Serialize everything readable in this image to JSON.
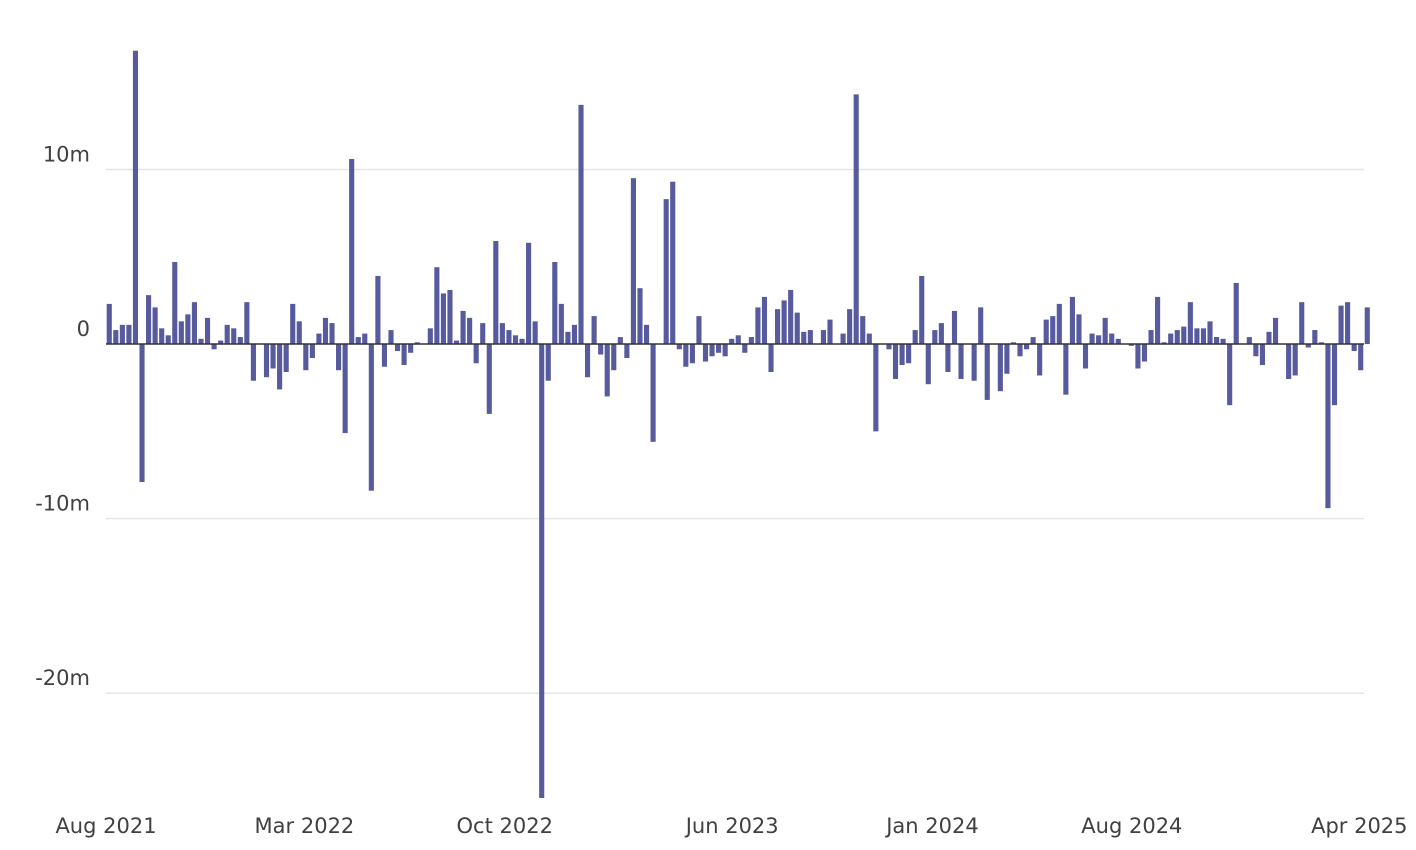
{
  "chart_data": {
    "type": "bar",
    "title": "",
    "xlabel": "",
    "ylabel": "",
    "bar_color": "#575a9c",
    "grid_color": "#e6e6e6",
    "axis_color": "#333333",
    "grid": true,
    "ylim": [
      -26,
      17.3
    ],
    "x_range": [
      "2021-08-01",
      "2025-04-06"
    ],
    "y_ticks": [
      {
        "value": 10,
        "label": "10m"
      },
      {
        "value": 0,
        "label": "0"
      },
      {
        "value": -10,
        "label": "-10m"
      },
      {
        "value": -20,
        "label": "-20m"
      }
    ],
    "x_ticks": [
      {
        "date": "2021-08-01",
        "label": "Aug 2021"
      },
      {
        "date": "2022-03-01",
        "label": "Mar 2022"
      },
      {
        "date": "2022-10-01",
        "label": "Oct 2022"
      },
      {
        "date": "2023-06-01",
        "label": "Jun 2023"
      },
      {
        "date": "2024-01-01",
        "label": "Jan 2024"
      },
      {
        "date": "2024-08-01",
        "label": "Aug 2024"
      },
      {
        "date": "2025-04-01",
        "label": "Apr 2025"
      }
    ],
    "x": [
      "2021-08-01",
      "2021-08-08",
      "2021-08-15",
      "2021-08-22",
      "2021-08-29",
      "2021-09-05",
      "2021-09-12",
      "2021-09-19",
      "2021-09-26",
      "2021-10-03",
      "2021-10-10",
      "2021-10-17",
      "2021-10-24",
      "2021-10-31",
      "2021-11-07",
      "2021-11-14",
      "2021-11-21",
      "2021-11-28",
      "2021-12-05",
      "2021-12-12",
      "2021-12-19",
      "2021-12-26",
      "2022-01-02",
      "2022-01-09",
      "2022-01-16",
      "2022-01-23",
      "2022-01-30",
      "2022-02-06",
      "2022-02-13",
      "2022-02-20",
      "2022-02-27",
      "2022-03-06",
      "2022-03-13",
      "2022-03-20",
      "2022-03-27",
      "2022-04-03",
      "2022-04-10",
      "2022-04-17",
      "2022-04-24",
      "2022-05-01",
      "2022-05-08",
      "2022-05-15",
      "2022-05-22",
      "2022-05-29",
      "2022-06-05",
      "2022-06-12",
      "2022-06-19",
      "2022-06-26",
      "2022-07-03",
      "2022-07-10",
      "2022-07-17",
      "2022-07-24",
      "2022-07-31",
      "2022-08-07",
      "2022-08-14",
      "2022-08-21",
      "2022-08-28",
      "2022-09-04",
      "2022-09-11",
      "2022-09-18",
      "2022-09-25",
      "2022-10-02",
      "2022-10-09",
      "2022-10-16",
      "2022-10-23",
      "2022-10-30",
      "2022-11-06",
      "2022-11-13",
      "2022-11-20",
      "2022-11-27",
      "2022-12-04",
      "2022-12-11",
      "2022-12-18",
      "2022-12-25",
      "2023-01-01",
      "2023-01-08",
      "2023-01-15",
      "2023-01-22",
      "2023-01-29",
      "2023-02-05",
      "2023-02-12",
      "2023-02-19",
      "2023-02-26",
      "2023-03-05",
      "2023-03-12",
      "2023-03-19",
      "2023-03-26",
      "2023-04-02",
      "2023-04-09",
      "2023-04-16",
      "2023-04-23",
      "2023-04-30",
      "2023-05-07",
      "2023-05-14",
      "2023-05-21",
      "2023-05-28",
      "2023-06-04",
      "2023-06-11",
      "2023-06-18",
      "2023-06-25",
      "2023-07-02",
      "2023-07-09",
      "2023-07-16",
      "2023-07-23",
      "2023-07-30",
      "2023-08-06",
      "2023-08-13",
      "2023-08-20",
      "2023-08-27",
      "2023-09-03",
      "2023-09-10",
      "2023-09-17",
      "2023-09-24",
      "2023-10-01",
      "2023-10-08",
      "2023-10-15",
      "2023-10-22",
      "2023-10-29",
      "2023-11-05",
      "2023-11-12",
      "2023-11-19",
      "2023-11-26",
      "2023-12-03",
      "2023-12-10",
      "2023-12-17",
      "2023-12-24",
      "2023-12-31",
      "2024-01-07",
      "2024-01-14",
      "2024-01-21",
      "2024-01-28",
      "2024-02-04",
      "2024-02-11",
      "2024-02-18",
      "2024-02-25",
      "2024-03-03",
      "2024-03-10",
      "2024-03-17",
      "2024-03-24",
      "2024-03-31",
      "2024-04-07",
      "2024-04-14",
      "2024-04-21",
      "2024-04-28",
      "2024-05-05",
      "2024-05-12",
      "2024-05-19",
      "2024-05-26",
      "2024-06-02",
      "2024-06-09",
      "2024-06-16",
      "2024-06-23",
      "2024-06-30",
      "2024-07-07",
      "2024-07-14",
      "2024-07-21",
      "2024-07-28",
      "2024-08-04",
      "2024-08-11",
      "2024-08-18",
      "2024-08-25",
      "2024-09-01",
      "2024-09-08",
      "2024-09-15",
      "2024-09-22",
      "2024-09-29",
      "2024-10-06",
      "2024-10-13",
      "2024-10-20",
      "2024-10-27",
      "2024-11-03",
      "2024-11-10",
      "2024-11-17",
      "2024-11-24",
      "2024-12-01",
      "2024-12-08",
      "2024-12-15",
      "2024-12-22",
      "2024-12-29",
      "2025-01-05",
      "2025-01-12",
      "2025-01-19",
      "2025-01-26",
      "2025-02-02",
      "2025-02-09",
      "2025-02-16",
      "2025-02-23",
      "2025-03-02",
      "2025-03-09",
      "2025-03-16",
      "2025-03-23",
      "2025-03-30",
      "2025-04-06"
    ],
    "values": [
      2.3,
      0.8,
      1.1,
      1.1,
      16.8,
      -7.9,
      2.8,
      2.1,
      0.9,
      0.5,
      4.7,
      1.3,
      1.7,
      2.4,
      0.3,
      1.5,
      -0.3,
      0.2,
      1.1,
      0.9,
      0.4,
      2.4,
      -2.1,
      0,
      -1.9,
      -1.4,
      -2.6,
      -1.6,
      2.3,
      1.3,
      -1.5,
      -0.8,
      0.6,
      1.5,
      1.2,
      -1.5,
      -5.1,
      10.6,
      0.4,
      0.6,
      -8.4,
      3.9,
      -1.3,
      0.8,
      -0.4,
      -1.2,
      -0.5,
      0.1,
      0,
      0.9,
      4.4,
      2.9,
      3.1,
      0.2,
      1.9,
      1.5,
      -1.1,
      1.2,
      -4,
      5.9,
      1.2,
      0.8,
      0.5,
      0.3,
      5.8,
      1.3,
      -26,
      -2.1,
      4.7,
      2.3,
      0.7,
      1.1,
      13.7,
      -1.9,
      1.6,
      -0.6,
      -3,
      -1.5,
      0.4,
      -0.8,
      9.5,
      3.2,
      1.1,
      -5.6,
      0,
      8.3,
      9.3,
      -0.3,
      -1.3,
      -1.1,
      1.6,
      -1,
      -0.7,
      -0.5,
      -0.7,
      0.3,
      0.5,
      -0.5,
      0.4,
      2.1,
      2.7,
      -1.6,
      2,
      2.5,
      3.1,
      1.8,
      0.7,
      0.8,
      0,
      0.8,
      1.4,
      0,
      0.6,
      2,
      14.3,
      1.6,
      0.6,
      -5,
      0,
      -0.3,
      -2,
      -1.2,
      -1.1,
      0.8,
      3.9,
      -2.3,
      0.8,
      1.2,
      -1.6,
      1.9,
      -2,
      0,
      -2.1,
      2.1,
      -3.2,
      0,
      -2.7,
      -1.7,
      0.1,
      -0.7,
      -0.3,
      0.4,
      -1.8,
      1.4,
      1.6,
      2.3,
      -2.9,
      2.7,
      1.7,
      -1.4,
      0.6,
      0.5,
      1.5,
      0.6,
      0.3,
      0,
      -0.1,
      -1.4,
      -1,
      0.8,
      2.7,
      0.1,
      0.6,
      0.8,
      1,
      2.4,
      0.9,
      0.9,
      1.3,
      0.4,
      0.3,
      -3.5,
      3.5,
      0,
      0.4,
      -0.7,
      -1.2,
      0.7,
      1.5,
      0,
      -2,
      -1.8,
      2.4,
      -0.2,
      0.8,
      0.1,
      -9.4,
      -3.5,
      2.2,
      2.4,
      -0.4,
      -1.5,
      2.1
    ]
  }
}
